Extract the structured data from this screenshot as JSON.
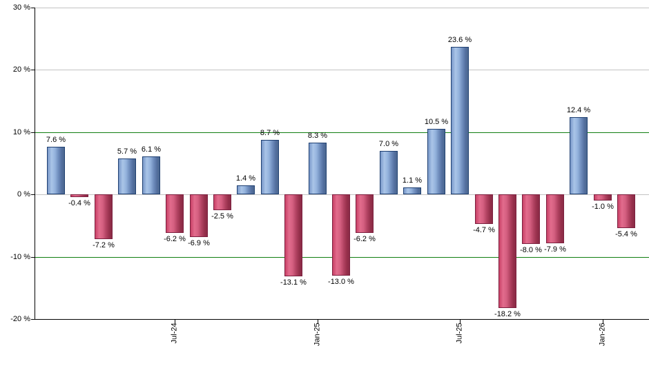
{
  "chart_data": {
    "type": "bar",
    "title": "",
    "xlabel": "",
    "ylabel": "",
    "ylim": [
      -20,
      30
    ],
    "grid": "on",
    "legend": "none",
    "values": [
      7.6,
      -0.4,
      -7.2,
      5.7,
      6.1,
      -6.2,
      -6.9,
      -2.5,
      1.4,
      8.7,
      -13.1,
      8.3,
      -13.0,
      -6.2,
      7.0,
      1.1,
      10.5,
      23.6,
      -4.7,
      -18.2,
      -8.0,
      -7.9,
      12.4,
      -1.0,
      -5.4
    ],
    "value_labels": [
      "7.6 %",
      "-0.4 %",
      "-7.2 %",
      "5.7 %",
      "6.1 %",
      "-6.2 %",
      "-6.9 %",
      "-2.5 %",
      "1.4 %",
      "8.7 %",
      "-13.1 %",
      "8.3 %",
      "-13.0 %",
      "-6.2 %",
      "7.0 %",
      "1.1 %",
      "10.5 %",
      "23.6 %",
      "-4.7 %",
      "-18.2 %",
      "-8.0 %",
      "-7.9 %",
      "12.4 %",
      "-1.0 %",
      "-5.4 %"
    ],
    "x_ticks": [
      {
        "label": "Jul-24",
        "bar_index": 5
      },
      {
        "label": "Jan-25",
        "bar_index": 11
      },
      {
        "label": "Jul-25",
        "bar_index": 17
      },
      {
        "label": "Jan-26",
        "bar_index": 23
      }
    ],
    "y_ticks": [
      {
        "label": "30 %",
        "value": 30
      },
      {
        "label": "20 %",
        "value": 20
      },
      {
        "label": "10 %",
        "value": 10
      },
      {
        "label": "0 %",
        "value": 0
      },
      {
        "label": "-10 %",
        "value": -10
      },
      {
        "label": "-20 %",
        "value": -20
      }
    ],
    "gridlines": [
      {
        "value": 30,
        "color": "#c3c3c3"
      },
      {
        "value": 20,
        "color": "#c3c3c3"
      },
      {
        "value": 10,
        "color": "#0e7d0e"
      },
      {
        "value": 0,
        "color": "#c3c3c3"
      },
      {
        "value": -10,
        "color": "#0e7d0e"
      }
    ],
    "colors": {
      "positive_bar": "#7e9ecf",
      "positive_border": "#1e3f71",
      "negative_bar": "#cf4169",
      "negative_border": "#7b1f3e",
      "axis": "#000000",
      "green_gridline": "#0e7d0e",
      "gray_gridline": "#c3c3c3",
      "background": "#ffffff"
    }
  }
}
